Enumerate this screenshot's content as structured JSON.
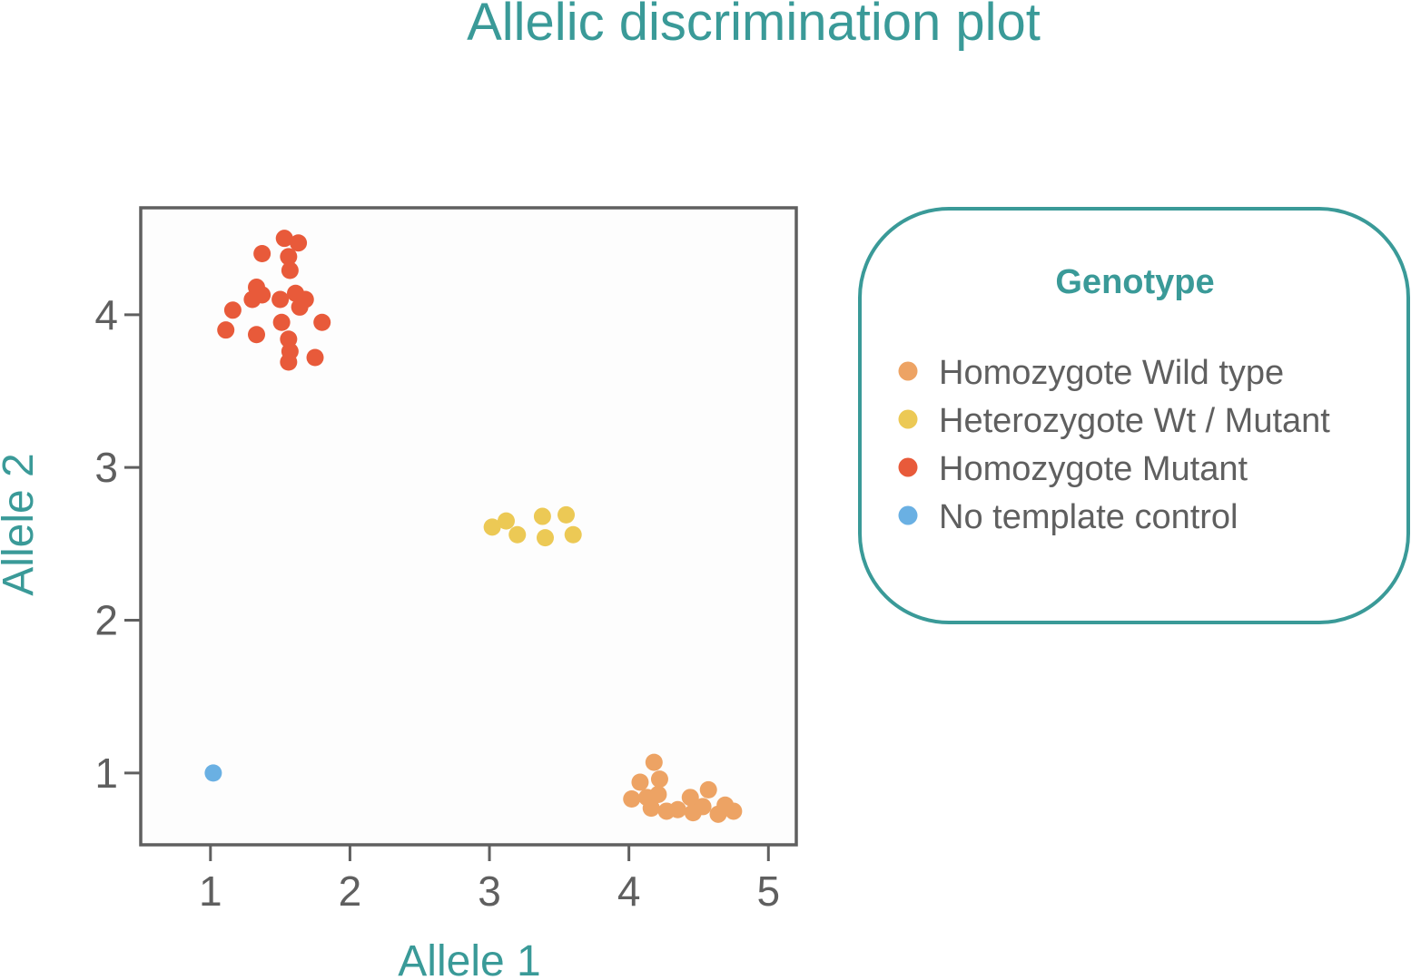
{
  "colors": {
    "accent": "#3a9a98",
    "axis": "#5f5f5f",
    "text": "#5f5f5f",
    "plot_background": "#fdfdfd"
  },
  "chart_data": {
    "type": "scatter",
    "title": "Allelic discrimination plot",
    "xlabel": "Allele 1",
    "ylabel": "Allele 2",
    "xlim": [
      0.5,
      5.2
    ],
    "ylim": [
      0.53,
      4.7
    ],
    "xticks": [
      1,
      2,
      3,
      4,
      5
    ],
    "yticks": [
      1,
      2,
      3,
      4
    ],
    "grid": false,
    "legend": {
      "title": "Genotype",
      "placement": "right"
    },
    "series": [
      {
        "name": "Homozygote Wild type",
        "color": "#eda364",
        "x": [
          4.18,
          4.08,
          4.22,
          4.02,
          4.13,
          4.21,
          4.16,
          4.27,
          4.35,
          4.44,
          4.46,
          4.53,
          4.57,
          4.64,
          4.69,
          4.75
        ],
        "y": [
          1.07,
          0.94,
          0.96,
          0.83,
          0.84,
          0.86,
          0.77,
          0.75,
          0.76,
          0.84,
          0.74,
          0.78,
          0.89,
          0.73,
          0.79,
          0.75
        ]
      },
      {
        "name": "Heterozygote Wt / Mutant",
        "color": "#ecc955",
        "x": [
          3.02,
          3.12,
          3.2,
          3.38,
          3.4,
          3.55,
          3.6
        ],
        "y": [
          2.61,
          2.65,
          2.56,
          2.68,
          2.54,
          2.69,
          2.56
        ]
      },
      {
        "name": "Homozygote Mutant",
        "color": "#e85a3a",
        "x": [
          1.53,
          1.63,
          1.37,
          1.56,
          1.57,
          1.33,
          1.37,
          1.3,
          1.5,
          1.61,
          1.68,
          1.64,
          1.16,
          1.11,
          1.51,
          1.8,
          1.33,
          1.56,
          1.57,
          1.75,
          1.56
        ],
        "y": [
          4.5,
          4.47,
          4.4,
          4.38,
          4.29,
          4.18,
          4.13,
          4.1,
          4.1,
          4.14,
          4.1,
          4.05,
          4.03,
          3.9,
          3.95,
          3.95,
          3.87,
          3.84,
          3.76,
          3.72,
          3.69
        ]
      },
      {
        "name": "No template control",
        "color": "#6ab0e3",
        "x": [
          1.02
        ],
        "y": [
          1.0
        ]
      }
    ]
  }
}
